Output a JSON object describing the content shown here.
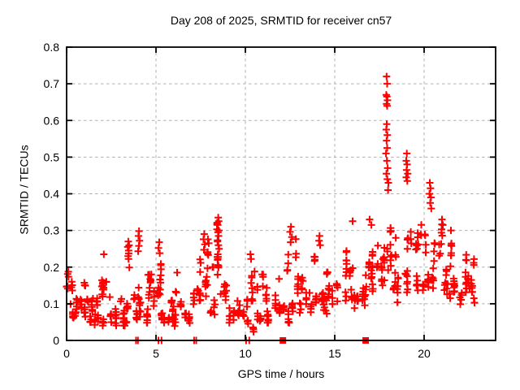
{
  "chart_data": {
    "type": "scatter",
    "title": "Day 208 of 2025, SRMTID for receiver cn57",
    "xlabel": "GPS time / hours",
    "ylabel": "SRMTID / TECUs",
    "xlim": [
      0,
      24
    ],
    "ylim": [
      0,
      0.8
    ],
    "xticks": [
      0,
      5,
      10,
      15,
      20
    ],
    "xtick_labels": [
      "0",
      "5",
      "10",
      "15",
      "20"
    ],
    "yticks": [
      0,
      0.1,
      0.2,
      0.3,
      0.4,
      0.5,
      0.6,
      0.7,
      0.8
    ],
    "ytick_labels": [
      "0",
      "0.1",
      "0.2",
      "0.3",
      "0.4",
      "0.5",
      "0.6",
      "0.7",
      "0.8"
    ],
    "grid": {
      "x": [
        5,
        10,
        15,
        20
      ],
      "y": [
        0.1,
        0.2,
        0.3,
        0.4,
        0.5,
        0.6,
        0.7
      ],
      "style": "dashed"
    },
    "legend": "none",
    "colors": {
      "series": "#ff0000",
      "grid": "#b0b0b0",
      "frame": "#000000",
      "background": "#ffffff"
    },
    "marker": "plus",
    "series": [
      {
        "name": "SRMTID",
        "marker": "plus",
        "color": "#ff0000",
        "envelope_segments_x0_x1_n_ylo_yhi": [
          [
            0.0,
            0.3,
            12,
            0.1,
            0.2
          ],
          [
            0.3,
            0.7,
            14,
            0.06,
            0.17
          ],
          [
            0.7,
            1.1,
            16,
            0.06,
            0.19
          ],
          [
            1.1,
            1.5,
            16,
            0.05,
            0.14
          ],
          [
            1.5,
            1.9,
            16,
            0.05,
            0.13
          ],
          [
            1.9,
            2.4,
            18,
            0.05,
            0.21
          ],
          [
            2.4,
            2.9,
            16,
            0.04,
            0.13
          ],
          [
            2.9,
            3.3,
            14,
            0.05,
            0.14
          ],
          [
            3.3,
            3.65,
            12,
            0.06,
            0.26
          ],
          [
            3.65,
            3.95,
            10,
            0.05,
            0.15
          ],
          [
            3.95,
            4.25,
            14,
            0.07,
            0.29
          ],
          [
            4.25,
            4.6,
            12,
            0.06,
            0.22
          ],
          [
            4.6,
            4.95,
            14,
            0.06,
            0.18
          ],
          [
            4.95,
            5.45,
            16,
            0.07,
            0.26
          ],
          [
            5.45,
            5.95,
            14,
            0.05,
            0.14
          ],
          [
            5.95,
            6.45,
            14,
            0.04,
            0.17
          ],
          [
            6.45,
            6.95,
            14,
            0.04,
            0.12
          ],
          [
            6.95,
            7.45,
            14,
            0.05,
            0.14
          ],
          [
            7.45,
            8.05,
            16,
            0.06,
            0.28
          ],
          [
            8.05,
            8.35,
            10,
            0.07,
            0.2
          ],
          [
            8.35,
            8.75,
            14,
            0.09,
            0.33
          ],
          [
            8.75,
            9.25,
            14,
            0.06,
            0.18
          ],
          [
            9.25,
            9.65,
            12,
            0.07,
            0.22
          ],
          [
            9.65,
            10.15,
            14,
            0.05,
            0.18
          ],
          [
            10.15,
            10.65,
            14,
            0.03,
            0.21
          ],
          [
            10.65,
            11.15,
            16,
            0.05,
            0.18
          ],
          [
            11.15,
            11.65,
            14,
            0.06,
            0.19
          ],
          [
            11.65,
            12.05,
            12,
            0.08,
            0.2
          ],
          [
            12.05,
            12.45,
            14,
            0.06,
            0.25
          ],
          [
            12.45,
            12.95,
            14,
            0.09,
            0.3
          ],
          [
            12.95,
            13.45,
            14,
            0.08,
            0.2
          ],
          [
            13.45,
            14.05,
            16,
            0.09,
            0.25
          ],
          [
            14.05,
            14.45,
            12,
            0.09,
            0.28
          ],
          [
            14.45,
            15.05,
            16,
            0.09,
            0.23
          ],
          [
            15.05,
            15.65,
            16,
            0.1,
            0.29
          ],
          [
            15.65,
            16.25,
            16,
            0.11,
            0.31
          ],
          [
            16.25,
            16.85,
            16,
            0.12,
            0.3
          ],
          [
            16.85,
            17.35,
            16,
            0.13,
            0.33
          ],
          [
            17.35,
            17.75,
            14,
            0.15,
            0.42
          ],
          [
            17.75,
            18.15,
            16,
            0.18,
            0.52
          ],
          [
            18.15,
            18.55,
            14,
            0.13,
            0.4
          ],
          [
            18.55,
            19.15,
            16,
            0.16,
            0.44
          ],
          [
            19.15,
            19.65,
            14,
            0.15,
            0.36
          ],
          [
            19.65,
            20.15,
            14,
            0.15,
            0.33
          ],
          [
            20.15,
            20.65,
            16,
            0.16,
            0.38
          ],
          [
            20.65,
            21.35,
            18,
            0.14,
            0.34
          ],
          [
            21.35,
            21.95,
            16,
            0.13,
            0.3
          ],
          [
            21.95,
            22.45,
            14,
            0.12,
            0.28
          ],
          [
            22.45,
            22.95,
            14,
            0.13,
            0.24
          ]
        ],
        "peak_points": [
          [
            17.9,
            0.72
          ],
          [
            17.93,
            0.7
          ],
          [
            17.88,
            0.67
          ],
          [
            17.92,
            0.665
          ],
          [
            17.95,
            0.655
          ],
          [
            17.9,
            0.645
          ],
          [
            17.93,
            0.64
          ],
          [
            17.91,
            0.59
          ],
          [
            17.88,
            0.575
          ],
          [
            17.94,
            0.56
          ],
          [
            17.9,
            0.545
          ],
          [
            17.93,
            0.525
          ],
          [
            17.87,
            0.51
          ],
          [
            17.92,
            0.49
          ],
          [
            17.96,
            0.47
          ],
          [
            17.89,
            0.455
          ],
          [
            17.94,
            0.44
          ],
          [
            18.0,
            0.43
          ],
          [
            17.98,
            0.41
          ],
          [
            19.03,
            0.51
          ],
          [
            19.0,
            0.49
          ],
          [
            19.05,
            0.48
          ],
          [
            19.02,
            0.465
          ],
          [
            19.08,
            0.455
          ],
          [
            19.0,
            0.445
          ],
          [
            19.06,
            0.435
          ],
          [
            20.32,
            0.43
          ],
          [
            20.36,
            0.415
          ],
          [
            20.3,
            0.4
          ],
          [
            20.38,
            0.39
          ],
          [
            20.34,
            0.375
          ],
          [
            20.4,
            0.36
          ],
          [
            8.48,
            0.335
          ],
          [
            8.51,
            0.325
          ],
          [
            8.46,
            0.315
          ],
          [
            8.52,
            0.3
          ],
          [
            8.47,
            0.295
          ],
          [
            8.5,
            0.285
          ],
          [
            8.44,
            0.27
          ],
          [
            8.49,
            0.26
          ],
          [
            8.53,
            0.25
          ],
          [
            8.46,
            0.235
          ],
          [
            3.45,
            0.27
          ],
          [
            3.42,
            0.255
          ],
          [
            3.47,
            0.245
          ],
          [
            3.44,
            0.23
          ],
          [
            4.05,
            0.298
          ],
          [
            4.02,
            0.285
          ],
          [
            4.08,
            0.272
          ],
          [
            4.04,
            0.258
          ],
          [
            4.0,
            0.243
          ],
          [
            5.18,
            0.268
          ],
          [
            5.14,
            0.252
          ],
          [
            5.21,
            0.238
          ],
          [
            7.7,
            0.29
          ],
          [
            7.66,
            0.276
          ],
          [
            7.73,
            0.262
          ],
          [
            7.68,
            0.247
          ],
          [
            12.55,
            0.31
          ],
          [
            12.5,
            0.296
          ],
          [
            12.6,
            0.282
          ],
          [
            12.53,
            0.268
          ],
          [
            14.15,
            0.285
          ],
          [
            14.12,
            0.272
          ],
          [
            14.18,
            0.26
          ],
          [
            10.28,
            0.235
          ],
          [
            10.32,
            0.222
          ],
          [
            2.08,
            0.235
          ],
          [
            6.18,
            0.185
          ],
          [
            16.0,
            0.325
          ],
          [
            16.95,
            0.33
          ],
          [
            17.05,
            0.315
          ],
          [
            21.0,
            0.33
          ],
          [
            21.05,
            0.315
          ],
          [
            21.5,
            0.3
          ],
          [
            22.78,
            0.115
          ],
          [
            22.82,
            0.103
          ],
          [
            21.42,
            0.127
          ],
          [
            21.46,
            0.115
          ]
        ]
      }
    ],
    "axis_markers": {
      "plus_x": [
        3.88,
        3.99,
        5.14,
        5.31,
        7.13,
        7.25,
        10.04,
        10.22
      ],
      "square_x": [
        12.1,
        16.73
      ]
    }
  }
}
